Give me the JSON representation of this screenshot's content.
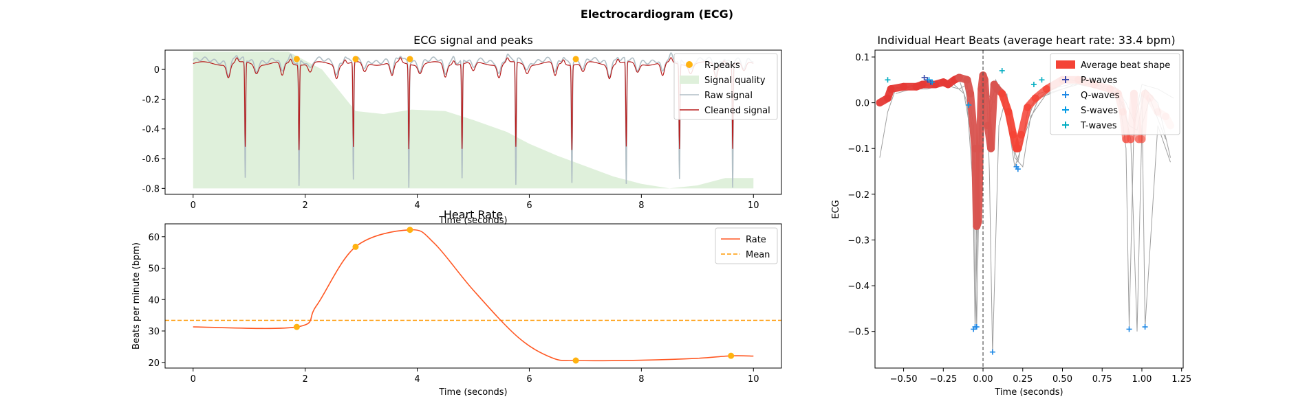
{
  "figure": {
    "suptitle": "Electrocardiogram (ECG)"
  },
  "chart_data": [
    {
      "id": "ecg",
      "type": "line",
      "title": "ECG signal and peaks",
      "xlabel": "Time (seconds)",
      "ylabel": "",
      "xlim": [
        -0.5,
        10.5
      ],
      "ylim": [
        -0.84,
        0.13
      ],
      "xticks": [
        0,
        2,
        4,
        6,
        8,
        10
      ],
      "yticks": [
        0.0,
        -0.2,
        -0.4,
        -0.6,
        -0.8
      ],
      "legend_position": "top-right",
      "legend": [
        "R-peaks",
        "Signal quality",
        "Raw signal",
        "Cleaned signal"
      ],
      "r_peaks": [
        1.85,
        2.9,
        3.87,
        6.83
      ],
      "peak_times": [
        0.93,
        1.89,
        2.86,
        3.85,
        4.8,
        5.76,
        6.76,
        7.73,
        8.68,
        9.63
      ],
      "signal_quality": {
        "x": [
          0,
          1.7,
          2.3,
          2.9,
          3.4,
          3.9,
          4.5,
          5,
          5.6,
          6,
          6.5,
          7,
          7.5,
          8,
          8.5,
          9,
          9.5,
          10
        ],
        "y": [
          0.12,
          0.12,
          0.0,
          -0.28,
          -0.3,
          -0.27,
          -0.28,
          -0.34,
          -0.42,
          -0.5,
          -0.58,
          -0.65,
          -0.72,
          -0.77,
          -0.8,
          -0.78,
          -0.73,
          -0.73
        ]
      },
      "colors": {
        "rpeaks": "#FFB20F",
        "quality": "#DFF0DB",
        "raw": "#B0BEC5",
        "cleaned": "#B71C1C"
      }
    },
    {
      "id": "rate",
      "type": "line",
      "title": "Heart Rate",
      "xlabel": "Time (seconds)",
      "ylabel": "Beats per minute (bpm)",
      "xlim": [
        -0.5,
        10.5
      ],
      "ylim": [
        18.2,
        64.1
      ],
      "xticks": [
        0,
        2,
        4,
        6,
        8,
        10
      ],
      "yticks": [
        20,
        30,
        40,
        50,
        60
      ],
      "mean": 33.4,
      "legend_position": "top-right",
      "legend": [
        "Rate",
        "Mean"
      ],
      "x": [
        0,
        1.85,
        2.2,
        2.9,
        3.87,
        4.3,
        5.0,
        5.8,
        6.4,
        6.83,
        8.0,
        9.0,
        9.6,
        10
      ],
      "y": [
        31.3,
        31.3,
        38,
        56.8,
        62.2,
        58,
        43,
        28,
        21.5,
        20.6,
        20.7,
        21.3,
        22.1,
        22.0
      ],
      "peaks": {
        "x": [
          1.85,
          2.9,
          3.87,
          6.83,
          9.6
        ],
        "y": [
          31.3,
          56.8,
          62.2,
          20.6,
          22.1
        ]
      },
      "colors": {
        "rate": "#FF5722",
        "mean": "#FF9800",
        "peaks": "#FFB20F"
      }
    },
    {
      "id": "beats",
      "type": "line",
      "title": "Individual Heart Beats (average heart rate: 33.4 bpm)",
      "xlabel": "Time (seconds)",
      "ylabel": "ECG",
      "xlim": [
        -0.68,
        1.26
      ],
      "ylim": [
        -0.58,
        0.115
      ],
      "xticks": [
        -0.5,
        -0.25,
        0.0,
        0.25,
        0.5,
        0.75,
        1.0,
        1.25
      ],
      "xtick_labels": [
        "−0.50",
        "−0.25",
        "0.00",
        "0.25",
        "0.50",
        "0.75",
        "1.00",
        "1.25"
      ],
      "yticks": [
        0.1,
        0.0,
        -0.1,
        -0.2,
        -0.3,
        -0.4,
        -0.5
      ],
      "ytick_labels": [
        "0.1",
        "0.0",
        "−0.1",
        "−0.2",
        "−0.3",
        "−0.4",
        "−0.5"
      ],
      "legend_position": "top-right",
      "legend": [
        "Average beat shape",
        "P-waves",
        "Q-waves",
        "S-waves",
        "T-waves"
      ],
      "average": {
        "x": [
          -0.65,
          -0.6,
          -0.58,
          -0.5,
          -0.42,
          -0.38,
          -0.3,
          -0.25,
          -0.22,
          -0.18,
          -0.15,
          -0.1,
          -0.08,
          -0.05,
          -0.04,
          -0.03,
          -0.02,
          -0.01,
          0.0,
          0.01,
          0.03,
          0.05,
          0.07,
          0.09,
          0.12,
          0.16,
          0.19,
          0.21,
          0.22,
          0.24,
          0.28,
          0.33,
          0.4,
          0.5,
          0.6,
          0.7,
          0.8,
          0.85,
          0.88,
          0.9,
          0.93,
          0.95,
          0.98,
          1.0,
          1.02,
          1.05,
          1.1,
          1.15,
          1.18
        ],
        "y": [
          0.0,
          0.01,
          0.03,
          0.035,
          0.035,
          0.04,
          0.04,
          0.045,
          0.04,
          0.05,
          0.055,
          0.05,
          0.02,
          -0.1,
          -0.27,
          -0.26,
          -0.1,
          0.03,
          0.06,
          0.05,
          -0.05,
          -0.1,
          0.04,
          0.03,
          0.02,
          -0.02,
          -0.07,
          -0.1,
          -0.1,
          -0.07,
          -0.01,
          0.01,
          0.03,
          0.05,
          0.05,
          0.04,
          0.03,
          0.02,
          -0.02,
          -0.08,
          -0.08,
          0.02,
          -0.08,
          -0.08,
          0.02,
          0.01,
          -0.02,
          -0.03,
          -0.05
        ]
      },
      "individual": [
        {
          "x": [
            -0.65,
            -0.6,
            -0.55,
            -0.45,
            -0.35,
            -0.25,
            -0.15,
            -0.1,
            -0.06,
            -0.05,
            -0.04,
            -0.02,
            0.0,
            0.02,
            0.05,
            0.08,
            0.12,
            0.16,
            0.2,
            0.24,
            0.28,
            0.35,
            0.45,
            0.55,
            0.7,
            0.85,
            0.9,
            0.92,
            0.95,
            1.0,
            1.02,
            1.1,
            1.18
          ],
          "y": [
            -0.12,
            -0.02,
            0.03,
            0.035,
            0.05,
            0.04,
            0.05,
            0.0,
            -0.2,
            -0.49,
            -0.3,
            0.0,
            0.06,
            0.03,
            -0.02,
            0.05,
            0.02,
            -0.05,
            -0.14,
            -0.1,
            -0.02,
            0.02,
            0.03,
            0.05,
            0.04,
            0.03,
            -0.1,
            -0.49,
            -0.05,
            0.02,
            -0.49,
            -0.05,
            -0.13
          ]
        },
        {
          "x": [
            -0.6,
            -0.5,
            -0.4,
            -0.3,
            -0.2,
            -0.12,
            -0.07,
            -0.05,
            -0.03,
            -0.01,
            0.02,
            0.04,
            0.06,
            0.1,
            0.15,
            0.2,
            0.25,
            0.3,
            0.4,
            0.5,
            0.6,
            0.75,
            0.88,
            0.93,
            0.97,
            1.0,
            1.05,
            1.15
          ],
          "y": [
            0.02,
            0.03,
            0.04,
            0.04,
            0.05,
            0.05,
            -0.05,
            -0.49,
            -0.2,
            0.04,
            0.06,
            -0.15,
            -0.55,
            -0.05,
            0.02,
            -0.12,
            -0.14,
            -0.03,
            0.02,
            0.03,
            0.04,
            0.03,
            0.0,
            -0.08,
            -0.5,
            -0.05,
            0.01,
            -0.08
          ]
        },
        {
          "x": [
            -0.6,
            -0.5,
            -0.4,
            -0.3,
            -0.2,
            -0.12,
            -0.06,
            -0.04,
            -0.02,
            0.0,
            0.04,
            0.08,
            0.12,
            0.18,
            0.22,
            0.26,
            0.32,
            0.42,
            0.55,
            0.7,
            0.85,
            0.92,
            0.97,
            1.02,
            1.1,
            1.18
          ],
          "y": [
            0.03,
            0.035,
            0.04,
            0.035,
            0.045,
            0.02,
            -0.1,
            -0.49,
            -0.1,
            0.05,
            0.0,
            0.03,
            0.01,
            -0.08,
            -0.13,
            -0.06,
            0.0,
            0.03,
            0.04,
            0.04,
            0.02,
            -0.05,
            -0.06,
            0.03,
            0.0,
            -0.12
          ]
        },
        {
          "x": [
            -0.55,
            -0.45,
            -0.35,
            -0.25,
            -0.15,
            -0.1,
            -0.06,
            -0.04,
            -0.02,
            0.0,
            0.03,
            0.07,
            0.1,
            0.15,
            0.2,
            0.25,
            0.35,
            0.5,
            0.65,
            0.8,
            0.9,
            0.95,
            1.0,
            1.1,
            1.2
          ],
          "y": [
            0.02,
            0.03,
            0.03,
            0.04,
            0.03,
            0.04,
            -0.05,
            -0.3,
            -0.05,
            0.04,
            0.02,
            0.0,
            0.04,
            0.01,
            -0.1,
            -0.08,
            0.01,
            0.03,
            0.05,
            0.05,
            0.0,
            -0.04,
            0.04,
            0.03,
            0.01
          ]
        }
      ],
      "p_waves": {
        "x": [
          -0.37,
          -0.35,
          -0.33
        ],
        "y": [
          0.055,
          0.05,
          0.045
        ]
      },
      "q_waves": {
        "x": [
          -0.06,
          -0.05,
          -0.04,
          0.06,
          0.21,
          0.22,
          0.92,
          1.02
        ],
        "y": [
          -0.495,
          -0.49,
          -0.49,
          -0.545,
          -0.14,
          -0.145,
          -0.495,
          -0.49
        ]
      },
      "s_waves": {
        "x": [
          -0.09,
          -0.34,
          -0.32
        ],
        "y": [
          -0.005,
          0.05,
          0.045
        ]
      },
      "t_waves": {
        "x": [
          -0.6,
          0.12,
          0.32,
          0.37
        ],
        "y": [
          0.05,
          0.07,
          0.04,
          0.05
        ]
      },
      "colors": {
        "average": "#F44336",
        "individual": "#9E9E9E",
        "p": "#3949AB",
        "q": "#1E88E5",
        "s": "#039BE5",
        "t": "#00ACC1",
        "vline": "#555555"
      }
    }
  ]
}
